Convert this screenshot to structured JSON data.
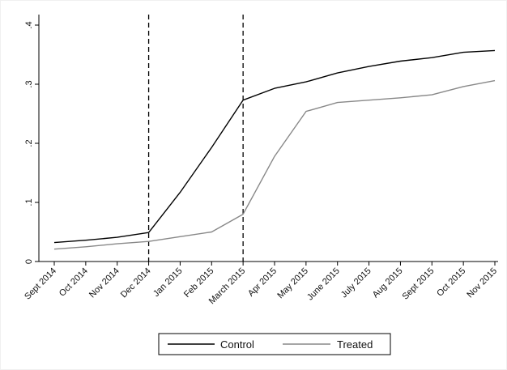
{
  "chart_data": {
    "type": "line",
    "categories": [
      "Sept 2014",
      "Oct 2014",
      "Nov 2014",
      "Dec 2014",
      "Jan 2015",
      "Feb 2015",
      "March 2015",
      "Apr 2015",
      "May 2015",
      "June 2015",
      "July 2015",
      "Aug 2015",
      "Sept 2015",
      "Oct 2015",
      "Nov 2015"
    ],
    "series": [
      {
        "name": "Control",
        "color": "#000000",
        "values": [
          0.032,
          0.036,
          0.041,
          0.049,
          0.117,
          0.193,
          0.273,
          0.293,
          0.304,
          0.319,
          0.33,
          0.339,
          0.345,
          0.354,
          0.357
        ]
      },
      {
        "name": "Treated",
        "color": "#888888",
        "values": [
          0.021,
          0.025,
          0.03,
          0.034,
          0.042,
          0.05,
          0.08,
          0.178,
          0.254,
          0.269,
          0.273,
          0.277,
          0.282,
          0.296,
          0.306
        ]
      }
    ],
    "ylim": [
      0,
      0.4
    ],
    "yticks": [
      0,
      0.1,
      0.2,
      0.3,
      0.4
    ],
    "ytick_labels": [
      "0",
      ".1",
      ".2",
      ".3",
      ".4"
    ],
    "vertical_lines": [
      "Dec 2014",
      "March 2015"
    ],
    "title": "",
    "xlabel": "",
    "ylabel": "",
    "grid": false,
    "legend_position": "bottom"
  }
}
